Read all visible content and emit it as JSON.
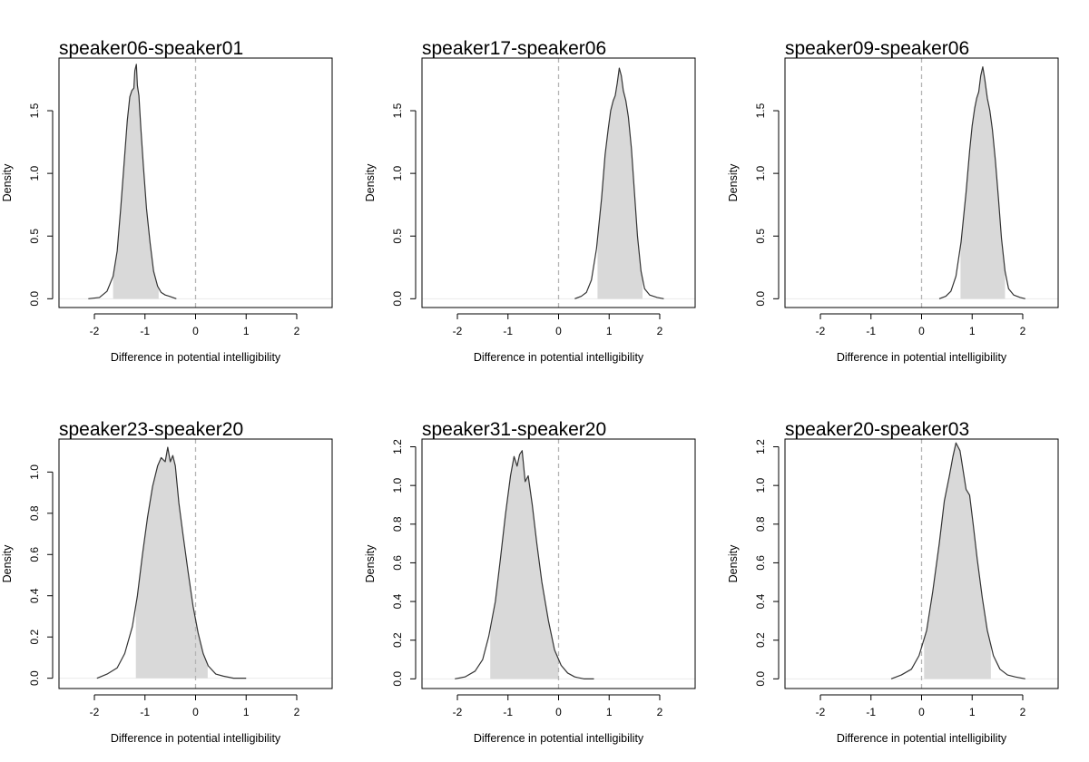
{
  "chart_data": [
    {
      "type": "area",
      "title": "speaker06-speaker01",
      "xlabel": "Difference in potential intelligibility",
      "ylabel": "Density",
      "xlim": [
        -2.7,
        2.7
      ],
      "ylim": [
        -0.07,
        1.92
      ],
      "xticks": [
        "-2",
        "-1",
        "0",
        "1",
        "2"
      ],
      "yticks": [
        "0.0",
        "0.5",
        "1.0",
        "1.5"
      ],
      "reference_line_x": 0,
      "interval": [
        -1.63,
        -0.73
      ],
      "density": {
        "x": [
          -2.12,
          -1.9,
          -1.75,
          -1.63,
          -1.55,
          -1.48,
          -1.4,
          -1.35,
          -1.3,
          -1.26,
          -1.22,
          -1.2,
          -1.17,
          -1.15,
          -1.12,
          -1.08,
          -1.03,
          -0.97,
          -0.9,
          -0.83,
          -0.75,
          -0.68,
          -0.6,
          -0.52,
          -0.38
        ],
        "y": [
          0.0,
          0.01,
          0.06,
          0.18,
          0.38,
          0.72,
          1.15,
          1.42,
          1.61,
          1.66,
          1.68,
          1.82,
          1.87,
          1.7,
          1.62,
          1.35,
          1.05,
          0.72,
          0.45,
          0.22,
          0.1,
          0.05,
          0.03,
          0.02,
          0.0
        ]
      }
    },
    {
      "type": "area",
      "title": "speaker17-speaker06",
      "xlabel": "Difference in potential intelligibility",
      "ylabel": "Density",
      "xlim": [
        -2.7,
        2.7
      ],
      "ylim": [
        -0.07,
        1.92
      ],
      "xticks": [
        "-2",
        "-1",
        "0",
        "1",
        "2"
      ],
      "yticks": [
        "0.0",
        "0.5",
        "1.0",
        "1.5"
      ],
      "reference_line_x": 0,
      "interval": [
        0.77,
        1.66
      ],
      "density": {
        "x": [
          0.32,
          0.45,
          0.55,
          0.65,
          0.75,
          0.85,
          0.92,
          0.98,
          1.03,
          1.08,
          1.12,
          1.16,
          1.2,
          1.24,
          1.28,
          1.33,
          1.38,
          1.44,
          1.5,
          1.56,
          1.63,
          1.7,
          1.8,
          1.95,
          2.08
        ],
        "y": [
          0.0,
          0.02,
          0.05,
          0.15,
          0.4,
          0.8,
          1.15,
          1.35,
          1.5,
          1.58,
          1.62,
          1.72,
          1.84,
          1.78,
          1.66,
          1.58,
          1.45,
          1.2,
          0.85,
          0.5,
          0.22,
          0.08,
          0.03,
          0.01,
          0.0
        ]
      }
    },
    {
      "type": "area",
      "title": "speaker09-speaker06",
      "xlabel": "Difference in potential intelligibility",
      "ylabel": "Density",
      "xlim": [
        -2.7,
        2.7
      ],
      "ylim": [
        -0.07,
        1.92
      ],
      "xticks": [
        "-2",
        "-1",
        "0",
        "1",
        "2"
      ],
      "yticks": [
        "0.0",
        "0.5",
        "1.0",
        "1.5"
      ],
      "reference_line_x": 0,
      "interval": [
        0.77,
        1.65
      ],
      "density": {
        "x": [
          0.35,
          0.48,
          0.58,
          0.68,
          0.78,
          0.88,
          0.95,
          1.0,
          1.05,
          1.09,
          1.13,
          1.17,
          1.21,
          1.25,
          1.3,
          1.35,
          1.4,
          1.46,
          1.52,
          1.58,
          1.65,
          1.72,
          1.82,
          1.95,
          2.05
        ],
        "y": [
          0.0,
          0.02,
          0.06,
          0.18,
          0.45,
          0.85,
          1.18,
          1.38,
          1.52,
          1.6,
          1.65,
          1.78,
          1.85,
          1.75,
          1.6,
          1.5,
          1.35,
          1.1,
          0.8,
          0.48,
          0.22,
          0.08,
          0.03,
          0.01,
          0.0
        ]
      }
    },
    {
      "type": "area",
      "title": "speaker23-speaker20",
      "xlabel": "Difference in potential intelligibility",
      "ylabel": "Density",
      "xlim": [
        -2.7,
        2.7
      ],
      "ylim": [
        -0.05,
        1.16
      ],
      "xticks": [
        "-2",
        "-1",
        "0",
        "1",
        "2"
      ],
      "yticks": [
        "0.0",
        "0.2",
        "0.4",
        "0.6",
        "0.8",
        "1.0"
      ],
      "reference_line_x": 0,
      "interval": [
        -1.18,
        0.24
      ],
      "density": {
        "x": [
          -1.95,
          -1.75,
          -1.55,
          -1.4,
          -1.25,
          -1.15,
          -1.05,
          -0.95,
          -0.85,
          -0.75,
          -0.68,
          -0.6,
          -0.55,
          -0.5,
          -0.45,
          -0.4,
          -0.33,
          -0.25,
          -0.15,
          -0.05,
          0.05,
          0.15,
          0.25,
          0.4,
          0.55,
          0.75,
          1.0
        ],
        "y": [
          0.0,
          0.02,
          0.05,
          0.12,
          0.25,
          0.4,
          0.6,
          0.78,
          0.93,
          1.03,
          1.07,
          1.05,
          1.12,
          1.05,
          1.08,
          1.03,
          0.85,
          0.7,
          0.52,
          0.35,
          0.22,
          0.12,
          0.06,
          0.02,
          0.01,
          0.0,
          0.0
        ]
      }
    },
    {
      "type": "area",
      "title": "speaker31-speaker20",
      "xlabel": "Difference in potential intelligibility",
      "ylabel": "Density",
      "xlim": [
        -2.7,
        2.7
      ],
      "ylim": [
        -0.05,
        1.24
      ],
      "xticks": [
        "-2",
        "-1",
        "0",
        "1",
        "2"
      ],
      "yticks": [
        "0.0",
        "0.2",
        "0.4",
        "0.6",
        "0.8",
        "1.0",
        "1.2"
      ],
      "reference_line_x": 0,
      "interval": [
        -1.35,
        0.0
      ],
      "density": {
        "x": [
          -2.05,
          -1.85,
          -1.65,
          -1.5,
          -1.38,
          -1.25,
          -1.15,
          -1.05,
          -0.95,
          -0.88,
          -0.82,
          -0.77,
          -0.72,
          -0.66,
          -0.6,
          -0.52,
          -0.43,
          -0.33,
          -0.2,
          -0.08,
          0.05,
          0.18,
          0.32,
          0.5,
          0.7
        ],
        "y": [
          0.0,
          0.01,
          0.04,
          0.1,
          0.22,
          0.4,
          0.62,
          0.85,
          1.05,
          1.15,
          1.1,
          1.16,
          1.18,
          1.02,
          1.05,
          0.9,
          0.7,
          0.5,
          0.3,
          0.15,
          0.07,
          0.03,
          0.01,
          0.0,
          0.0
        ]
      }
    },
    {
      "type": "area",
      "title": "speaker20-speaker03",
      "xlabel": "Difference in potential intelligibility",
      "ylabel": "Density",
      "xlim": [
        -2.7,
        2.7
      ],
      "ylim": [
        -0.05,
        1.24
      ],
      "xticks": [
        "-2",
        "-1",
        "0",
        "1",
        "2"
      ],
      "yticks": [
        "0.0",
        "0.2",
        "0.4",
        "0.6",
        "0.8",
        "1.0",
        "1.2"
      ],
      "reference_line_x": 0,
      "interval": [
        0.05,
        1.37
      ],
      "density": {
        "x": [
          -0.6,
          -0.4,
          -0.2,
          -0.05,
          0.1,
          0.22,
          0.35,
          0.45,
          0.55,
          0.62,
          0.68,
          0.72,
          0.76,
          0.82,
          0.88,
          0.95,
          1.02,
          1.1,
          1.2,
          1.3,
          1.42,
          1.55,
          1.7,
          1.85,
          2.05
        ],
        "y": [
          0.0,
          0.02,
          0.05,
          0.12,
          0.25,
          0.45,
          0.7,
          0.92,
          1.05,
          1.15,
          1.22,
          1.2,
          1.18,
          1.08,
          0.98,
          0.95,
          0.8,
          0.62,
          0.42,
          0.25,
          0.12,
          0.05,
          0.02,
          0.01,
          0.0
        ]
      }
    }
  ]
}
